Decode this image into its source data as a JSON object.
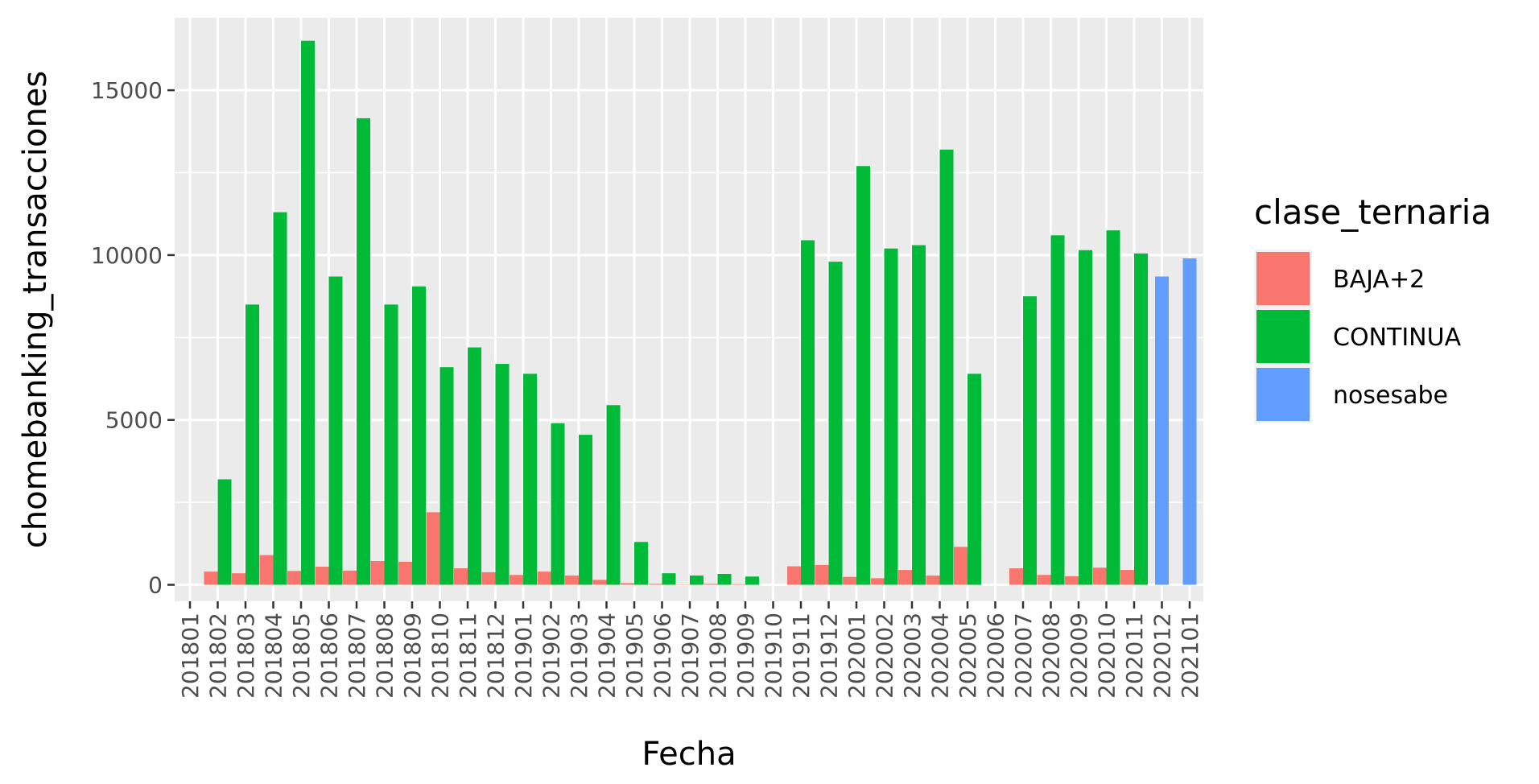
{
  "chart_data": {
    "type": "bar",
    "title": "",
    "xlabel": "Fecha",
    "ylabel": "chomebanking_transacciones",
    "ylim": [
      -500,
      17200
    ],
    "yticks": [
      0,
      5000,
      10000,
      15000
    ],
    "grid": true,
    "legend_position": "right",
    "legend_title": "clase_ternaria",
    "categories": [
      "201801",
      "201802",
      "201803",
      "201804",
      "201805",
      "201806",
      "201807",
      "201808",
      "201809",
      "201810",
      "201811",
      "201812",
      "201901",
      "201902",
      "201903",
      "201904",
      "201905",
      "201906",
      "201907",
      "201908",
      "201909",
      "201910",
      "201911",
      "201912",
      "202001",
      "202002",
      "202003",
      "202004",
      "202005",
      "202006",
      "202007",
      "202008",
      "202009",
      "202010",
      "202011",
      "202012",
      "202101"
    ],
    "series": [
      {
        "name": "BAJA+2",
        "color": "#F8766D",
        "values": [
          null,
          400,
          350,
          900,
          420,
          550,
          430,
          720,
          700,
          2200,
          500,
          380,
          300,
          400,
          280,
          150,
          50,
          30,
          10,
          30,
          20,
          null,
          560,
          600,
          240,
          200,
          450,
          280,
          1150,
          null,
          500,
          300,
          260,
          520,
          450,
          null,
          null
        ]
      },
      {
        "name": "CONTINUA",
        "color": "#00BA38",
        "values": [
          null,
          3200,
          8500,
          11300,
          16500,
          9350,
          14150,
          8500,
          9050,
          6600,
          7200,
          6700,
          6400,
          4900,
          4550,
          5450,
          1300,
          350,
          280,
          330,
          250,
          null,
          10450,
          9800,
          12700,
          10200,
          10300,
          13200,
          6400,
          null,
          8750,
          10600,
          10150,
          10750,
          10050,
          null,
          null
        ]
      },
      {
        "name": "nosesabe",
        "color": "#619CFF",
        "values": [
          null,
          null,
          null,
          null,
          null,
          null,
          null,
          null,
          null,
          null,
          null,
          null,
          null,
          null,
          null,
          null,
          null,
          null,
          null,
          null,
          null,
          null,
          null,
          null,
          null,
          null,
          null,
          null,
          null,
          null,
          null,
          null,
          null,
          null,
          null,
          9350,
          9900
        ]
      }
    ]
  }
}
